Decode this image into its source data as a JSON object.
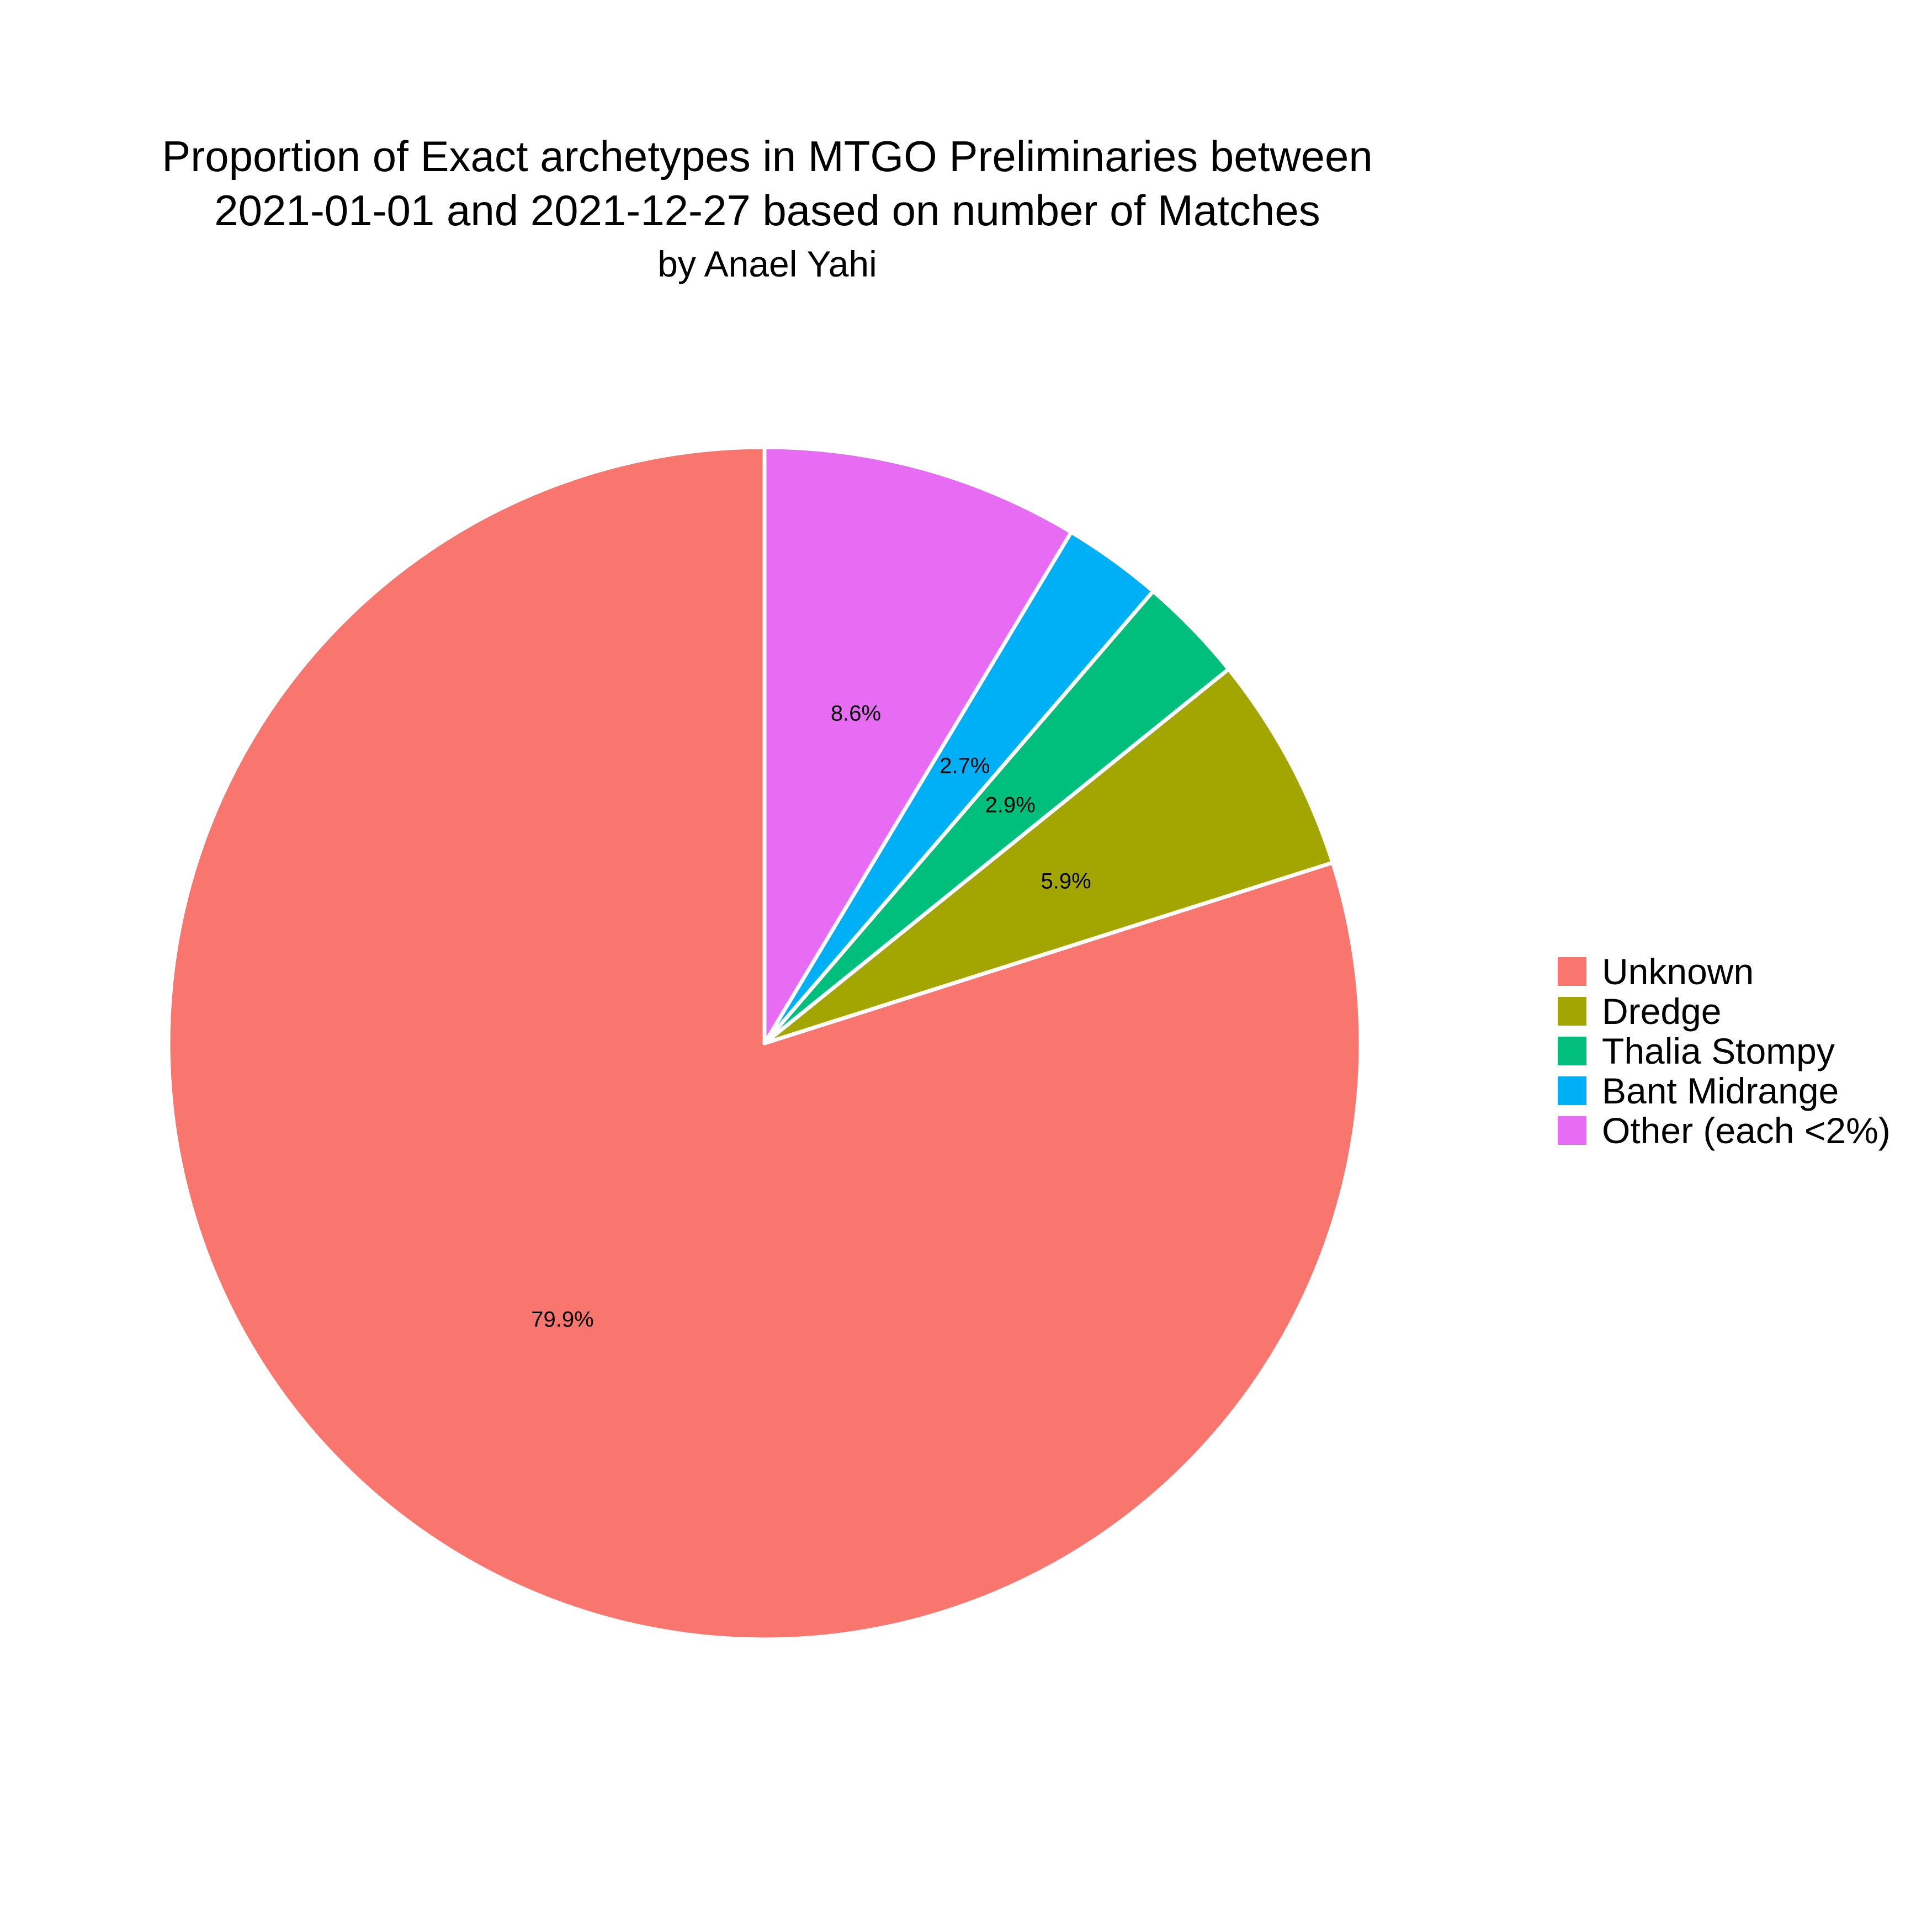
{
  "chart_data": {
    "type": "pie",
    "title_lines": [
      "Proportion of Exact archetypes in MTGO Preliminaries between",
      "2021-01-01 and 2021-12-27 based on number of Matches"
    ],
    "subtitle": "by Anael Yahi",
    "slices": [
      {
        "name": "Unknown",
        "value": 79.9,
        "label": "79.9%",
        "color": "#F8766D"
      },
      {
        "name": "Dredge",
        "value": 5.9,
        "label": "5.9%",
        "color": "#A3A500"
      },
      {
        "name": "Thalia Stompy",
        "value": 2.9,
        "label": "2.9%",
        "color": "#00BF7D"
      },
      {
        "name": "Bant Midrange",
        "value": 2.7,
        "label": "2.7%",
        "color": "#00B0F6"
      },
      {
        "name": "Other (each <2%)",
        "value": 8.6,
        "label": "8.6%",
        "color": "#E76BF3"
      }
    ],
    "legend_position": "right",
    "slice_border_color": "#FFFFFF"
  }
}
